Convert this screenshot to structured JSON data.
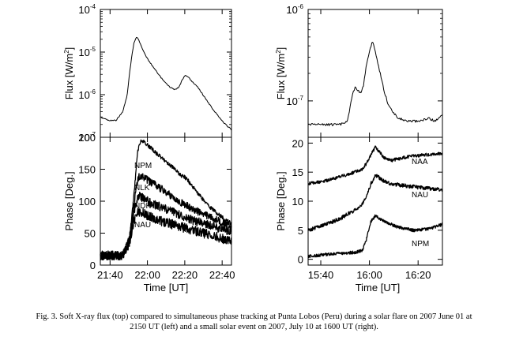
{
  "caption": {
    "line1": "Fig. 3. Soft X-ray flux (top) compared to simultaneous phase tracking at Punta Lobos (Peru) during a solar flare on 2007 June 01 at",
    "line2": "2150 UT (left) and a small solar event on 2007, July 10 at 1600 UT (right)."
  },
  "chart_data": [
    {
      "id": "left-flux",
      "type": "line",
      "ylabel": "Flux [W/m²]",
      "yscale": "log",
      "ylim": [
        1e-07,
        0.0001
      ],
      "yticks": [
        {
          "base": "10",
          "exp": "-4"
        },
        {
          "base": "10",
          "exp": "-5"
        },
        {
          "base": "10",
          "exp": "-6"
        },
        {
          "base": "10",
          "exp": "-7"
        }
      ],
      "xlim": [
        21.58,
        22.75
      ],
      "series": [
        {
          "name": "X-ray flux",
          "x": [
            21.58,
            21.65,
            21.72,
            21.78,
            21.82,
            21.84,
            21.86,
            21.88,
            21.9,
            21.92,
            21.94,
            21.97,
            22.0,
            22.05,
            22.1,
            22.15,
            22.2,
            22.25,
            22.28,
            22.31,
            22.34,
            22.37,
            22.4,
            22.45,
            22.52,
            22.6,
            22.68,
            22.75
          ],
          "y": [
            3e-07,
            2.5e-07,
            2.5e-07,
            4e-07,
            1e-06,
            3e-06,
            8e-06,
            1.6e-05,
            2.3e-05,
            2e-05,
            1.5e-05,
            1e-05,
            7e-06,
            4.5e-06,
            3e-06,
            2e-06,
            1.5e-06,
            1.3e-06,
            1.5e-06,
            2.2e-06,
            2.9e-06,
            2.5e-06,
            2e-06,
            1.5e-06,
            8e-07,
            4e-07,
            2.2e-07,
            1.5e-07
          ]
        }
      ]
    },
    {
      "id": "left-phase",
      "type": "line",
      "xlabel": "Time [UT]",
      "ylabel": "Phase [Deg.]",
      "ylim": [
        0,
        200
      ],
      "yticks": [
        "0",
        "50",
        "100",
        "150",
        "200"
      ],
      "xlim": [
        21.58,
        22.75
      ],
      "xticks": [
        {
          "v": 21.6667,
          "label": "21:40"
        },
        {
          "v": 22.0,
          "label": "22:00"
        },
        {
          "v": 22.3333,
          "label": "22:20"
        },
        {
          "v": 22.6667,
          "label": "22:40"
        }
      ],
      "series": [
        {
          "name": "NPM",
          "noise": 0.6,
          "x": [
            21.58,
            21.7,
            21.78,
            21.84,
            21.88,
            21.91,
            21.93,
            21.95,
            22.0,
            22.1,
            22.2,
            22.3,
            22.33,
            22.36,
            22.45,
            22.55,
            22.65,
            22.75
          ],
          "y": [
            12,
            12,
            15,
            40,
            110,
            175,
            190,
            195,
            188,
            172,
            157,
            140,
            138,
            133,
            112,
            92,
            77,
            65
          ]
        },
        {
          "name": "NLK",
          "noise": 1.2,
          "x": [
            21.58,
            21.7,
            21.78,
            21.84,
            21.88,
            21.91,
            21.93,
            21.95,
            22.0,
            22.1,
            22.2,
            22.3,
            22.4,
            22.5,
            22.6,
            22.7,
            22.75
          ],
          "y": [
            14,
            14,
            15,
            40,
            95,
            130,
            140,
            140,
            133,
            122,
            110,
            98,
            88,
            80,
            72,
            64,
            60
          ]
        },
        {
          "name": "NDK",
          "noise": 1.4,
          "x": [
            21.58,
            21.7,
            21.78,
            21.84,
            21.88,
            21.91,
            21.93,
            21.95,
            22.0,
            22.1,
            22.2,
            22.3,
            22.4,
            22.5,
            22.6,
            22.7,
            22.75
          ],
          "y": [
            15,
            15,
            15,
            40,
            85,
            103,
            108,
            106,
            100,
            92,
            85,
            78,
            70,
            65,
            60,
            55,
            53
          ]
        },
        {
          "name": "NAU",
          "noise": 1.5,
          "x": [
            21.58,
            21.7,
            21.78,
            21.84,
            21.88,
            21.91,
            21.93,
            21.95,
            22.0,
            22.1,
            22.2,
            22.3,
            22.4,
            22.5,
            22.6,
            22.7,
            22.75
          ],
          "y": [
            15,
            15,
            15,
            35,
            70,
            82,
            84,
            82,
            78,
            70,
            65,
            60,
            55,
            50,
            45,
            40,
            38
          ]
        }
      ]
    },
    {
      "id": "right-flux",
      "type": "line",
      "ylabel": "Flux [W/m²]",
      "yscale": "log",
      "ylim": [
        4e-08,
        1e-06
      ],
      "yticks": [
        {
          "base": "10",
          "exp": "-6"
        },
        {
          "base": "10",
          "exp": "-7"
        }
      ],
      "xlim": [
        15.58,
        16.5
      ],
      "series": [
        {
          "name": "X-ray flux",
          "x": [
            15.58,
            15.7,
            15.8,
            15.85,
            15.88,
            15.9,
            15.92,
            15.94,
            15.96,
            15.98,
            16.0,
            16.02,
            16.04,
            16.06,
            16.08,
            16.1,
            16.13,
            16.16,
            16.2,
            16.25,
            16.3,
            16.35,
            16.4,
            16.45,
            16.5
          ],
          "y": [
            5.5e-08,
            5.5e-08,
            5.5e-08,
            6e-08,
            1.1e-07,
            1.4e-07,
            1.3e-07,
            1.2e-07,
            1.5e-07,
            2.5e-07,
            3.5e-07,
            4.5e-07,
            3.5e-07,
            2.5e-07,
            1.8e-07,
            1.3e-07,
            9e-08,
            7.5e-08,
            6.5e-08,
            6e-08,
            6e-08,
            6e-08,
            6.5e-08,
            6e-08,
            7e-08
          ]
        }
      ]
    },
    {
      "id": "right-phase",
      "type": "line",
      "xlabel": "Time [UT]",
      "ylabel": "Phase [Deg.]",
      "ylim": [
        -1,
        21
      ],
      "yticks": [
        "0",
        "5",
        "10",
        "15",
        "20"
      ],
      "xlim": [
        15.58,
        16.5
      ],
      "xticks": [
        {
          "v": 15.6667,
          "label": "15:40"
        },
        {
          "v": 16.0,
          "label": "16:00"
        },
        {
          "v": 16.3333,
          "label": "16:20"
        }
      ],
      "series": [
        {
          "name": "NAA",
          "noise": 0.5,
          "x": [
            15.58,
            15.7,
            15.8,
            15.9,
            15.95,
            15.98,
            16.01,
            16.04,
            16.07,
            16.1,
            16.15,
            16.2,
            16.3,
            16.4,
            16.5
          ],
          "y": [
            13.0,
            13.5,
            14.2,
            15.0,
            15.5,
            16.5,
            18.0,
            19.3,
            18.5,
            17.5,
            17.0,
            17.3,
            17.8,
            18.0,
            18.2
          ]
        },
        {
          "name": "NAU",
          "noise": 0.6,
          "x": [
            15.58,
            15.7,
            15.8,
            15.9,
            15.95,
            15.98,
            16.01,
            16.04,
            16.07,
            16.1,
            16.15,
            16.2,
            16.3,
            16.4,
            16.5
          ],
          "y": [
            5.0,
            6.0,
            7.0,
            8.5,
            9.5,
            11.0,
            13.0,
            14.5,
            14.0,
            13.5,
            13.0,
            12.8,
            12.5,
            12.2,
            12.0
          ]
        },
        {
          "name": "NPM",
          "noise": 0.5,
          "x": [
            15.58,
            15.7,
            15.8,
            15.9,
            15.95,
            15.98,
            16.01,
            16.04,
            16.07,
            16.1,
            16.15,
            16.2,
            16.3,
            16.4,
            16.5
          ],
          "y": [
            0.5,
            0.8,
            1.0,
            1.2,
            1.5,
            3.5,
            6.5,
            7.5,
            7.0,
            6.5,
            6.0,
            5.5,
            5.0,
            5.2,
            6.0
          ]
        }
      ]
    }
  ]
}
